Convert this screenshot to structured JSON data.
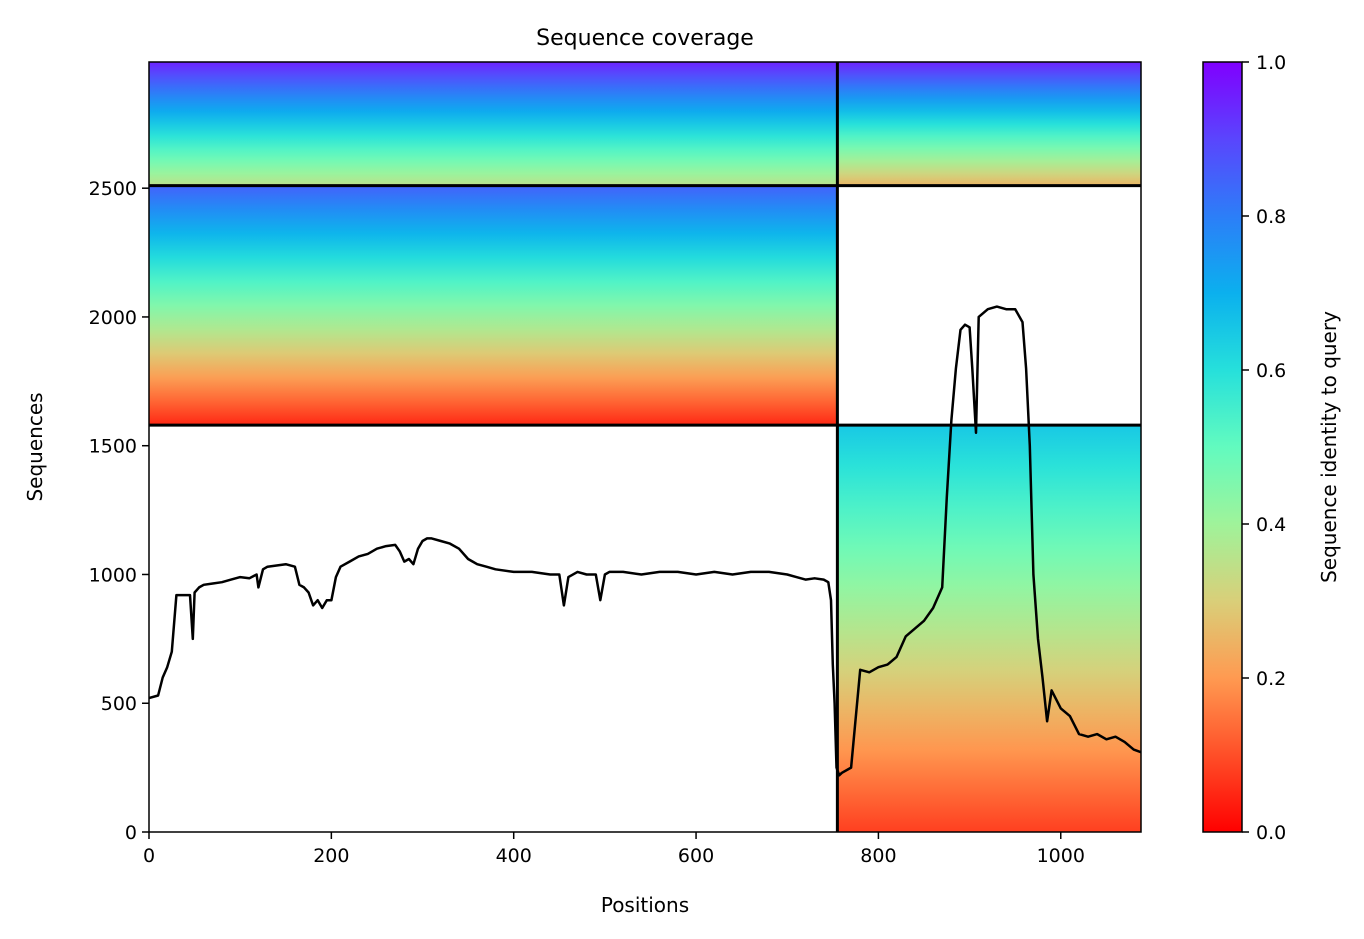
{
  "chart_data": {
    "type": "heatmap",
    "title": "Sequence coverage",
    "xlabel": "Positions",
    "ylabel": "Sequences",
    "xlim": [
      0,
      1088
    ],
    "ylim": [
      0,
      2990
    ],
    "xticks": [
      0,
      200,
      400,
      600,
      800,
      1000
    ],
    "yticks": [
      0,
      500,
      1000,
      1500,
      2000,
      2500
    ],
    "grid": false,
    "colorbar": {
      "label": "Sequence identity to query",
      "min": 0.0,
      "max": 1.0,
      "ticks": [
        0.0,
        0.2,
        0.4,
        0.6,
        0.8,
        1.0
      ],
      "colormap": "rainbow_r"
    },
    "dividers": {
      "x": [
        755
      ],
      "y": [
        1580,
        2510
      ]
    },
    "coverage_blocks": [
      {
        "x0": 0,
        "x1": 755,
        "y0": 2510,
        "y1": 2990,
        "identity_bottom": 0.35,
        "identity_top": 0.95
      },
      {
        "x0": 755,
        "x1": 1088,
        "y0": 2510,
        "y1": 2990,
        "identity_bottom": 0.25,
        "identity_top": 0.95
      },
      {
        "x0": 0,
        "x1": 755,
        "y0": 1580,
        "y1": 2510,
        "identity_bottom": 0.05,
        "identity_top": 0.85
      },
      {
        "x0": 755,
        "x1": 1088,
        "y0": 0,
        "y1": 1580,
        "identity_bottom": 0.08,
        "identity_top": 0.65
      }
    ],
    "series": [
      {
        "x": [
          0,
          10,
          15,
          20,
          25,
          30,
          35,
          45,
          48,
          50,
          55,
          60,
          70,
          80,
          90,
          100,
          110,
          118,
          120,
          125,
          130,
          140,
          150,
          160,
          165,
          170,
          175,
          180,
          185,
          190,
          195,
          200,
          205,
          210,
          220,
          230,
          240,
          250,
          260,
          270,
          275,
          280,
          285,
          290,
          295,
          300,
          305,
          310,
          320,
          330,
          340,
          350,
          355,
          360,
          370,
          380,
          400,
          420,
          440,
          450,
          455,
          460,
          470,
          480,
          490,
          495,
          500,
          505,
          520,
          540,
          560,
          580,
          600,
          620,
          640,
          660,
          680,
          700,
          710,
          720,
          730,
          740,
          745,
          748,
          750,
          752,
          754,
          757,
          760,
          770,
          780,
          790,
          800,
          810,
          820,
          830,
          840,
          850,
          860,
          870,
          875,
          880,
          885,
          890,
          895,
          900,
          903,
          907,
          910,
          920,
          930,
          940,
          950,
          958,
          962,
          966,
          970,
          975,
          980,
          985,
          990,
          1000,
          1010,
          1020,
          1030,
          1040,
          1050,
          1060,
          1070,
          1080,
          1088
        ],
        "values": [
          520,
          530,
          600,
          640,
          700,
          920,
          920,
          920,
          750,
          930,
          950,
          960,
          965,
          970,
          980,
          990,
          985,
          1000,
          950,
          1020,
          1030,
          1035,
          1040,
          1030,
          960,
          950,
          930,
          880,
          900,
          870,
          900,
          900,
          990,
          1030,
          1050,
          1070,
          1080,
          1100,
          1110,
          1115,
          1090,
          1050,
          1060,
          1040,
          1100,
          1130,
          1140,
          1140,
          1130,
          1120,
          1100,
          1060,
          1050,
          1040,
          1030,
          1020,
          1010,
          1010,
          1000,
          1000,
          880,
          990,
          1010,
          1000,
          1000,
          900,
          1000,
          1010,
          1010,
          1000,
          1010,
          1010,
          1000,
          1010,
          1000,
          1010,
          1010,
          1000,
          990,
          980,
          985,
          980,
          970,
          900,
          650,
          500,
          250,
          220,
          230,
          250,
          630,
          620,
          640,
          650,
          680,
          760,
          790,
          820,
          870,
          950,
          1300,
          1600,
          1800,
          1950,
          1970,
          1960,
          1800,
          1550,
          2000,
          2030,
          2040,
          2030,
          2030,
          1980,
          1800,
          1500,
          1000,
          750,
          600,
          430,
          550,
          480,
          450,
          380,
          370,
          380,
          360,
          370,
          350,
          320,
          310
        ]
      }
    ]
  }
}
